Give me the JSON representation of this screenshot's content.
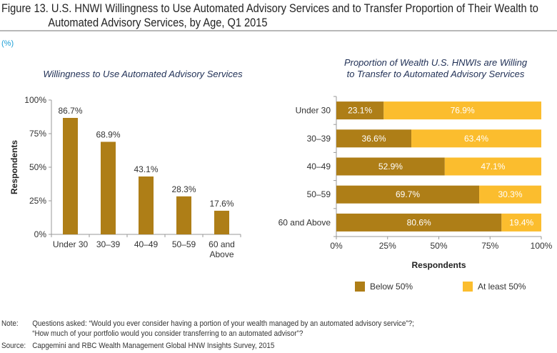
{
  "figure": {
    "title_line1": "Figure 13. U.S. HNWI Willingness to Use Automated Advisory Services and to Transfer Proportion of Their Wealth to",
    "title_line2": "Automated Advisory Services, by Age, Q1 2015",
    "unit": "(%)",
    "note_label": "Note:",
    "note_line1": "Questions asked: “Would you ever consider having a portion of your wealth managed by an automated advisory service”?;",
    "note_line2": "“How much of your portfolio would you consider transferring to an automated advisor”?",
    "source_label": "Source:",
    "source_text": "Capgemini and RBC Wealth Management Global HNW Insights Survey, 2015"
  },
  "colors": {
    "dark_gold": "#ae7e17",
    "light_gold": "#fbbd2e",
    "axis": "#999999",
    "title_blue": "#1f2f55",
    "unit_blue": "#1a9ed6"
  },
  "chart_data": [
    {
      "type": "bar",
      "title": "Willingness to Use Automated Advisory Services",
      "categories": [
        "Under 30",
        "30–39",
        "40–49",
        "50–59",
        "60 and Above"
      ],
      "category_lines": [
        [
          "Under 30"
        ],
        [
          "30–39"
        ],
        [
          "40–49"
        ],
        [
          "50–59"
        ],
        [
          "60 and",
          "Above"
        ]
      ],
      "values": [
        86.7,
        68.9,
        43.1,
        28.3,
        17.6
      ],
      "value_labels": [
        "86.7%",
        "68.9%",
        "43.1%",
        "28.3%",
        "17.6%"
      ],
      "xlabel": "",
      "ylabel": "Respondents",
      "ylim": [
        0,
        100
      ],
      "yticks": [
        0,
        25,
        50,
        75,
        100
      ],
      "ytick_labels": [
        "0%",
        "25%",
        "50%",
        "75%",
        "100%"
      ],
      "grid": false
    },
    {
      "type": "bar",
      "orientation": "horizontal-stacked",
      "title": "Proportion of Wealth U.S. HNWIs are Willing to Transfer to Automated Advisory Services",
      "title_lines": [
        "Proportion of Wealth U.S. HNWIs are Willing",
        "to Transfer to Automated Advisory Services"
      ],
      "categories": [
        "Under 30",
        "30–39",
        "40–49",
        "50–59",
        "60 and Above"
      ],
      "series": [
        {
          "name": "Below 50%",
          "values": [
            23.1,
            36.6,
            52.9,
            69.7,
            80.6
          ],
          "labels": [
            "23.1%",
            "36.6%",
            "52.9%",
            "69.7%",
            "80.6%"
          ]
        },
        {
          "name": "At least 50%",
          "values": [
            76.9,
            63.4,
            47.1,
            30.3,
            19.4
          ],
          "labels": [
            "76.9%",
            "63.4%",
            "47.1%",
            "30.3%",
            "19.4%"
          ]
        }
      ],
      "xlabel": "Respondents",
      "xlim": [
        0,
        100
      ],
      "xticks": [
        0,
        25,
        50,
        75,
        100
      ],
      "xtick_labels": [
        "0%",
        "25%",
        "50%",
        "75%",
        "100%"
      ],
      "legend_position": "bottom",
      "grid": false
    }
  ]
}
